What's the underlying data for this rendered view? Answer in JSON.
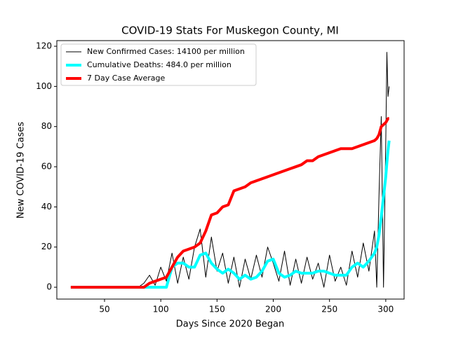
{
  "chart_data": {
    "type": "line",
    "title": "COVID-19 Stats For Muskegon County, MI",
    "xlabel": "Days Since 2020 Began",
    "ylabel": "New COVID-19 Cases",
    "x": [
      20,
      25,
      30,
      35,
      40,
      45,
      50,
      55,
      60,
      65,
      70,
      75,
      80,
      85,
      90,
      95,
      100,
      105,
      110,
      115,
      120,
      125,
      130,
      135,
      140,
      145,
      150,
      155,
      160,
      165,
      170,
      175,
      180,
      185,
      190,
      195,
      200,
      205,
      210,
      215,
      220,
      225,
      230,
      235,
      240,
      245,
      250,
      255,
      260,
      265,
      270,
      275,
      280,
      285,
      290,
      292,
      294,
      296,
      298,
      300,
      301,
      302,
      303
    ],
    "series": [
      {
        "name": "New Confirmed Cases: 14100 per million",
        "color": "#000000",
        "width": 1,
        "values": [
          0,
          0,
          0,
          0,
          0,
          0,
          0,
          0,
          0,
          0,
          0,
          0,
          0,
          2,
          6,
          1,
          10,
          3,
          17,
          2,
          15,
          4,
          20,
          29,
          5,
          25,
          8,
          17,
          2,
          15,
          0,
          14,
          4,
          16,
          5,
          20,
          12,
          3,
          18,
          1,
          14,
          2,
          15,
          4,
          12,
          0,
          16,
          3,
          10,
          1,
          18,
          5,
          22,
          8,
          28,
          0,
          46,
          85,
          0,
          72,
          117,
          95,
          100
        ]
      },
      {
        "name": "Cumulative Deaths: 484.0 per million",
        "color": "#00ffff",
        "width": 4,
        "values": [
          0,
          0,
          0,
          0,
          0,
          0,
          0,
          0,
          0,
          0,
          0,
          0,
          0,
          0,
          0,
          0,
          0,
          0,
          10,
          12,
          12,
          10,
          10,
          16,
          17,
          12,
          9,
          7,
          9,
          7,
          4,
          6,
          4,
          5,
          8,
          13,
          14,
          7,
          5,
          6,
          8,
          7,
          7,
          7,
          8,
          8,
          7,
          6,
          6,
          6,
          10,
          12,
          10,
          13,
          17,
          20,
          26,
          35,
          45,
          55,
          62,
          68,
          73
        ]
      },
      {
        "name": "7 Day Case Average",
        "color": "#ff0000",
        "width": 4,
        "values": [
          0,
          0,
          0,
          0,
          0,
          0,
          0,
          0,
          0,
          0,
          0,
          0,
          0,
          0,
          2,
          3,
          4,
          5,
          10,
          15,
          18,
          19,
          20,
          22,
          28,
          36,
          37,
          40,
          41,
          48,
          49,
          50,
          52,
          53,
          54,
          55,
          56,
          57,
          58,
          59,
          60,
          61,
          63,
          63,
          65,
          66,
          67,
          68,
          69,
          69,
          69,
          70,
          71,
          72,
          73,
          74,
          76,
          80,
          81,
          82,
          83,
          84,
          84
        ]
      }
    ],
    "xlim": [
      7.6,
      316.3
    ],
    "ylim": [
      -5.9,
      122.8
    ],
    "xticks": [
      50,
      100,
      150,
      200,
      250,
      300
    ],
    "yticks": [
      0,
      20,
      40,
      60,
      80,
      100,
      120
    ],
    "legend": "upper left"
  }
}
